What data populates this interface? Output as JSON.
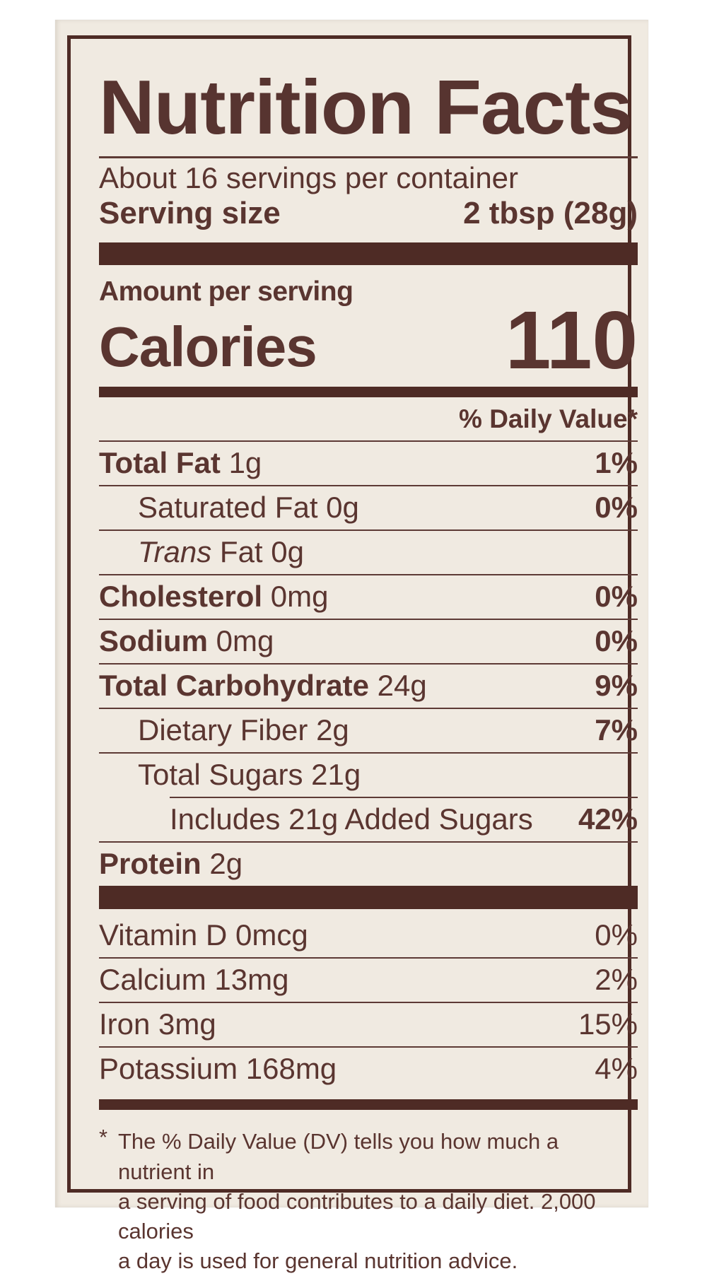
{
  "label": {
    "title": "Nutrition Facts",
    "servings_per_container": "About 16 servings per container",
    "serving_size_label": "Serving size",
    "serving_size_value": "2 tbsp (28g)",
    "amount_per_serving": "Amount per serving",
    "calories_label": "Calories",
    "calories_value": "110",
    "daily_value_header": "% Daily Value*",
    "nutrients": [
      {
        "name": "Total Fat",
        "amount": "1g",
        "dv": "1%"
      },
      {
        "name": "Saturated Fat",
        "amount": "0g",
        "dv": "0%"
      },
      {
        "name_italic": "Trans",
        "name": "Fat",
        "amount": "0g",
        "dv": ""
      },
      {
        "name": "Cholesterol",
        "amount": "0mg",
        "dv": "0%"
      },
      {
        "name": "Sodium",
        "amount": "0mg",
        "dv": "0%"
      },
      {
        "name": "Total Carbohydrate",
        "amount": "24g",
        "dv": "9%"
      },
      {
        "name": "Dietary Fiber",
        "amount": "2g",
        "dv": "7%"
      },
      {
        "name": "Total Sugars",
        "amount": "21g",
        "dv": ""
      },
      {
        "name": "Includes 21g Added Sugars",
        "amount": "",
        "dv": "42%"
      },
      {
        "name": "Protein",
        "amount": "2g",
        "dv": ""
      }
    ],
    "vitamins": [
      {
        "name": "Vitamin D",
        "amount": "0mcg",
        "dv": "0%"
      },
      {
        "name": "Calcium",
        "amount": "13mg",
        "dv": "2%"
      },
      {
        "name": "Iron",
        "amount": "3mg",
        "dv": "15%"
      },
      {
        "name": "Potassium",
        "amount": "168mg",
        "dv": "4%"
      }
    ],
    "footnote": {
      "marker": "*",
      "lines": [
        "The % Daily Value (DV) tells you how much a nutrient in",
        "a serving of food contributes to a daily diet. 2,000 calories",
        "a day is used for general nutrition advice."
      ]
    }
  },
  "colors": {
    "label_background": "#f0eae1",
    "ink": "#5a3530",
    "bar": "#4e2b25",
    "page_background": "#ffffff"
  }
}
